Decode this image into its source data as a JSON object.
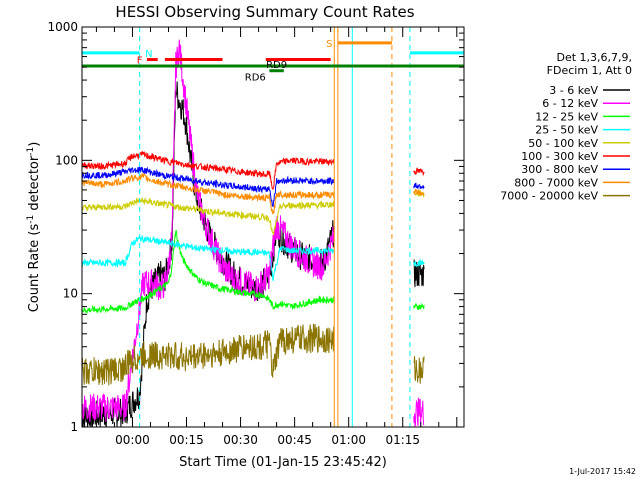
{
  "chart_data": {
    "type": "line",
    "title": "HESSI Observing Summary Count Rates",
    "xlabel": "Start Time (01-Jan-15 23:45:42)",
    "ylabel_main": "Count Rate (s",
    "ylabel_sup1": "-1",
    "ylabel_mid": " detector",
    "ylabel_sup2": "-1",
    "ylabel_end": ")",
    "y_scale": "log",
    "ylim": [
      1,
      1000
    ],
    "xlim_minutes": [
      -14,
      92
    ],
    "x_ticks": [
      {
        "label": "00:00",
        "minute": 0
      },
      {
        "label": "00:15",
        "minute": 15
      },
      {
        "label": "00:30",
        "minute": 30
      },
      {
        "label": "00:45",
        "minute": 45
      },
      {
        "label": "01:00",
        "minute": 60
      },
      {
        "label": "01:15",
        "minute": 75
      }
    ],
    "y_ticks": [
      {
        "label": "1",
        "value": 1
      },
      {
        "label": "10",
        "value": 10
      },
      {
        "label": "100",
        "value": 100
      },
      {
        "label": "1000",
        "value": 1000
      }
    ],
    "legend_header": [
      "Det 1,3,6,7,9,",
      "FDecim 1, Att 0"
    ],
    "legend_placement": "right",
    "footer_date": "1-Jul-2017 15:42",
    "gaps_minutes": [
      [
        56,
        78
      ]
    ],
    "series": [
      {
        "name": "3 - 6 keV",
        "color": "#000000",
        "points": [
          [
            -14,
            1.2
          ],
          [
            -2,
            1.3
          ],
          [
            2,
            1.8
          ],
          [
            4,
            9
          ],
          [
            6,
            12
          ],
          [
            8,
            14
          ],
          [
            9,
            13
          ],
          [
            10,
            17
          ],
          [
            11,
            25
          ],
          [
            12,
            350
          ],
          [
            13,
            280
          ],
          [
            14,
            240
          ],
          [
            15,
            180
          ],
          [
            16,
            110
          ],
          [
            17,
            70
          ],
          [
            18,
            50
          ],
          [
            20,
            35
          ],
          [
            22,
            25
          ],
          [
            25,
            18
          ],
          [
            28,
            14
          ],
          [
            31,
            12
          ],
          [
            34,
            11
          ],
          [
            36,
            12
          ],
          [
            38,
            13
          ],
          [
            39,
            20
          ],
          [
            40,
            30
          ],
          [
            42,
            25
          ],
          [
            44,
            22
          ],
          [
            47,
            19
          ],
          [
            50,
            18
          ],
          [
            53,
            17
          ],
          [
            55,
            25
          ],
          [
            56,
            30
          ],
          [
            78,
            14
          ],
          [
            81,
            14
          ]
        ]
      },
      {
        "name": "6 - 12 keV",
        "color": "#ff00ff",
        "points": [
          [
            -14,
            1.4
          ],
          [
            -2,
            1.4
          ],
          [
            3,
            12
          ],
          [
            6,
            12
          ],
          [
            8,
            11
          ],
          [
            9,
            12
          ],
          [
            10,
            16
          ],
          [
            11,
            28
          ],
          [
            12,
            500
          ],
          [
            13,
            700
          ],
          [
            14,
            420
          ],
          [
            15,
            250
          ],
          [
            16,
            150
          ],
          [
            17,
            90
          ],
          [
            18,
            55
          ],
          [
            20,
            35
          ],
          [
            22,
            25
          ],
          [
            25,
            16
          ],
          [
            28,
            13
          ],
          [
            31,
            12
          ],
          [
            34,
            11
          ],
          [
            36,
            12
          ],
          [
            38,
            14
          ],
          [
            39,
            22
          ],
          [
            40,
            33
          ],
          [
            42,
            28
          ],
          [
            44,
            23
          ],
          [
            47,
            19
          ],
          [
            50,
            17
          ],
          [
            53,
            16
          ],
          [
            55,
            23
          ],
          [
            56,
            27
          ],
          [
            78,
            1.3
          ],
          [
            81,
            1.3
          ]
        ]
      },
      {
        "name": "12 - 25 keV",
        "color": "#00ff00",
        "points": [
          [
            -14,
            7.5
          ],
          [
            -2,
            7.8
          ],
          [
            0,
            8.5
          ],
          [
            4,
            9.5
          ],
          [
            8,
            11
          ],
          [
            10,
            12
          ],
          [
            11,
            16
          ],
          [
            12,
            30
          ],
          [
            13,
            22
          ],
          [
            14,
            18
          ],
          [
            16,
            15
          ],
          [
            18,
            13
          ],
          [
            20,
            12
          ],
          [
            24,
            11
          ],
          [
            28,
            10.5
          ],
          [
            32,
            10
          ],
          [
            36,
            9.8
          ],
          [
            38,
            9
          ],
          [
            39,
            8
          ],
          [
            41,
            8.5
          ],
          [
            44,
            8
          ],
          [
            48,
            8.5
          ],
          [
            52,
            9
          ],
          [
            55,
            9
          ],
          [
            56,
            9
          ],
          [
            78,
            8
          ],
          [
            81,
            8
          ]
        ]
      },
      {
        "name": "25 - 50 keV",
        "color": "#00ffff",
        "points": [
          [
            -14,
            17
          ],
          [
            -2,
            17
          ],
          [
            0,
            24
          ],
          [
            2,
            26
          ],
          [
            6,
            25
          ],
          [
            10,
            24
          ],
          [
            14,
            23
          ],
          [
            18,
            22
          ],
          [
            22,
            21.5
          ],
          [
            26,
            21
          ],
          [
            30,
            20.5
          ],
          [
            34,
            20.5
          ],
          [
            38,
            20
          ],
          [
            39,
            13
          ],
          [
            41,
            22
          ],
          [
            44,
            21
          ],
          [
            48,
            21
          ],
          [
            52,
            21
          ],
          [
            56,
            21
          ],
          [
            78,
            17
          ],
          [
            81,
            17
          ]
        ]
      },
      {
        "name": "50 - 100 keV",
        "color": "#cccc00",
        "points": [
          [
            -14,
            44
          ],
          [
            -6,
            45
          ],
          [
            -2,
            45
          ],
          [
            0,
            48
          ],
          [
            2,
            50
          ],
          [
            6,
            48
          ],
          [
            10,
            46
          ],
          [
            14,
            44
          ],
          [
            18,
            43
          ],
          [
            22,
            41
          ],
          [
            26,
            40
          ],
          [
            30,
            39
          ],
          [
            34,
            38
          ],
          [
            38,
            37
          ],
          [
            39,
            27
          ],
          [
            41,
            45
          ],
          [
            44,
            46
          ],
          [
            48,
            46
          ],
          [
            52,
            46
          ],
          [
            56,
            47
          ],
          [
            78,
            57
          ],
          [
            81,
            56
          ]
        ]
      },
      {
        "name": "100 - 300 keV",
        "color": "#ff0000",
        "points": [
          [
            -14,
            92
          ],
          [
            -8,
            90
          ],
          [
            -2,
            95
          ],
          [
            0,
            108
          ],
          [
            3,
            110
          ],
          [
            6,
            105
          ],
          [
            10,
            98
          ],
          [
            14,
            94
          ],
          [
            18,
            90
          ],
          [
            22,
            88
          ],
          [
            26,
            85
          ],
          [
            30,
            82
          ],
          [
            34,
            80
          ],
          [
            37,
            78
          ],
          [
            38,
            80
          ],
          [
            39,
            60
          ],
          [
            40,
            95
          ],
          [
            44,
            100
          ],
          [
            48,
            98
          ],
          [
            52,
            98
          ],
          [
            56,
            98
          ],
          [
            78,
            83
          ],
          [
            81,
            82
          ]
        ]
      },
      {
        "name": "300 - 800 keV",
        "color": "#0000ff",
        "points": [
          [
            -14,
            78
          ],
          [
            -8,
            77
          ],
          [
            -2,
            82
          ],
          [
            0,
            85
          ],
          [
            3,
            85
          ],
          [
            6,
            80
          ],
          [
            10,
            76
          ],
          [
            14,
            73
          ],
          [
            18,
            70
          ],
          [
            22,
            67
          ],
          [
            26,
            65
          ],
          [
            30,
            63
          ],
          [
            34,
            62
          ],
          [
            37,
            60
          ],
          [
            38,
            62
          ],
          [
            39,
            45
          ],
          [
            40,
            70
          ],
          [
            44,
            71
          ],
          [
            48,
            70
          ],
          [
            52,
            70
          ],
          [
            56,
            70
          ],
          [
            78,
            65
          ],
          [
            81,
            64
          ]
        ]
      },
      {
        "name": "800 - 7000 keV",
        "color": "#ff8c00",
        "points": [
          [
            -14,
            68
          ],
          [
            -8,
            66
          ],
          [
            -2,
            70
          ],
          [
            0,
            74
          ],
          [
            3,
            75
          ],
          [
            6,
            70
          ],
          [
            10,
            66
          ],
          [
            14,
            63
          ],
          [
            18,
            60
          ],
          [
            22,
            58
          ],
          [
            26,
            55
          ],
          [
            30,
            54
          ],
          [
            34,
            53
          ],
          [
            37,
            52
          ],
          [
            38,
            53
          ],
          [
            39,
            38
          ],
          [
            40,
            56
          ],
          [
            44,
            55
          ],
          [
            48,
            55
          ],
          [
            52,
            55
          ],
          [
            56,
            55
          ],
          [
            78,
            58
          ],
          [
            81,
            57
          ]
        ]
      },
      {
        "name": "7000 - 20000 keV",
        "color": "#8b7500",
        "points": [
          [
            -14,
            2.6
          ],
          [
            -8,
            2.6
          ],
          [
            -4,
            2.7
          ],
          [
            -2,
            2.8
          ],
          [
            0,
            3.2
          ],
          [
            4,
            3.5
          ],
          [
            8,
            3.4
          ],
          [
            12,
            3.4
          ],
          [
            16,
            3.3
          ],
          [
            20,
            3.5
          ],
          [
            24,
            3.5
          ],
          [
            28,
            3.8
          ],
          [
            32,
            4
          ],
          [
            36,
            4
          ],
          [
            38,
            4.2
          ],
          [
            39,
            2.5
          ],
          [
            41,
            4.5
          ],
          [
            44,
            4.5
          ],
          [
            48,
            4.6
          ],
          [
            52,
            4.6
          ],
          [
            56,
            4.5
          ],
          [
            78,
            2.7
          ],
          [
            81,
            2.7
          ]
        ]
      }
    ],
    "annotation_bars": [
      {
        "label": "N",
        "color": "#00ffff",
        "y_value": 640,
        "segments": [
          [
            -14,
            2
          ],
          [
            77,
            92
          ]
        ]
      },
      {
        "label": "F",
        "color": "#ff0000",
        "y_value": 570,
        "segments": [
          [
            4,
            7
          ],
          [
            9,
            25
          ],
          [
            37,
            55
          ]
        ]
      },
      {
        "label": "S",
        "color": "#ff8c00",
        "y_value": 760,
        "segments": [
          [
            57,
            72
          ]
        ]
      },
      {
        "label": "",
        "color": "#008000",
        "y_value": 510,
        "segments": [
          [
            -14,
            92
          ]
        ]
      },
      {
        "label": "RD6",
        "color": "#008000",
        "y_value": 470,
        "segments": [
          [
            38,
            42
          ]
        ]
      },
      {
        "label": "RD9",
        "color": "",
        "y_value": 0,
        "segments": []
      }
    ],
    "vertical_lines": [
      {
        "minute": 2,
        "color": "#00ffff",
        "style": "dashed"
      },
      {
        "minute": 77,
        "color": "#00ffff",
        "style": "dashed"
      },
      {
        "minute": 56,
        "color": "#ff8c00",
        "style": "solid"
      },
      {
        "minute": 57,
        "color": "#ff8c00",
        "style": "solid"
      },
      {
        "minute": 61,
        "color": "#00ffff",
        "style": "solid"
      },
      {
        "minute": 72,
        "color": "#ff8c00",
        "style": "dashed"
      }
    ]
  }
}
